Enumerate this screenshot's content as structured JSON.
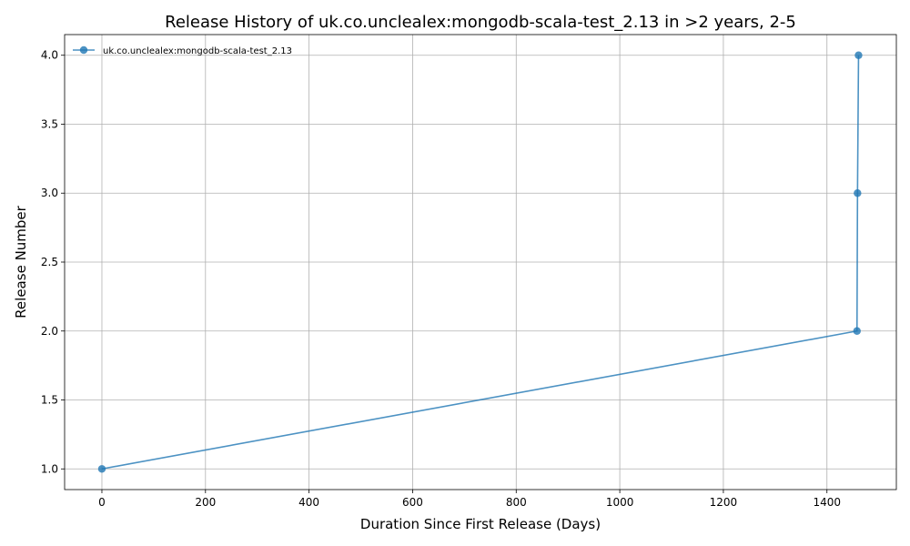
{
  "chart_data": {
    "type": "line",
    "title": "Release History of uk.co.unclealex:mongodb-scala-test_2.13 in >2 years, 2-5",
    "xlabel": "Duration Since First Release (Days)",
    "ylabel": "Release Number",
    "xlim": [
      -72,
      1534
    ],
    "ylim": [
      0.85,
      4.15
    ],
    "x_ticks": [
      0,
      200,
      400,
      600,
      800,
      1000,
      1200,
      1400
    ],
    "y_ticks": [
      1.0,
      1.5,
      2.0,
      2.5,
      3.0,
      3.5,
      4.0
    ],
    "x_tick_labels": [
      "0",
      "200",
      "400",
      "600",
      "800",
      "1000",
      "1200",
      "1400"
    ],
    "y_tick_labels": [
      "1.0",
      "1.5",
      "2.0",
      "2.5",
      "3.0",
      "3.5",
      "4.0"
    ],
    "grid": true,
    "legend_position": "top-left",
    "series": [
      {
        "name": "uk.co.unclealex:mongodb-scala-test_2.13",
        "color": "#1f77b4",
        "x": [
          0,
          1458,
          1459,
          1461
        ],
        "y": [
          1,
          2,
          3,
          4
        ]
      }
    ]
  }
}
